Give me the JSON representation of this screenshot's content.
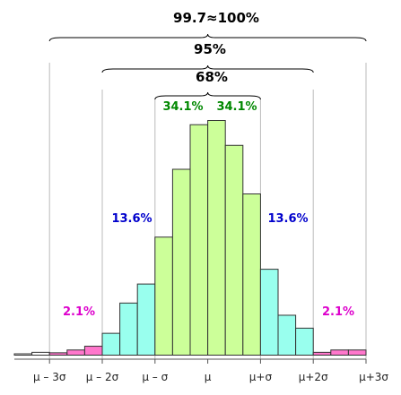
{
  "chart_data": {
    "type": "bar",
    "subtype": "histogram",
    "x_ticks": [
      "μ – 3σ",
      "μ – 2σ",
      "μ – σ",
      "μ",
      "μ+σ",
      "μ+2σ",
      "μ+3σ"
    ],
    "bins": [
      {
        "value": 0.004,
        "band": "outer"
      },
      {
        "value": 0.012,
        "band": "outer"
      },
      {
        "value": 0.01,
        "band": "tail"
      },
      {
        "value": 0.022,
        "band": "tail"
      },
      {
        "value": 0.038,
        "band": "tail"
      },
      {
        "value": 0.093,
        "band": "two_sigma"
      },
      {
        "value": 0.222,
        "band": "two_sigma"
      },
      {
        "value": 0.303,
        "band": "two_sigma"
      },
      {
        "value": 0.503,
        "band": "one_sigma"
      },
      {
        "value": 0.792,
        "band": "one_sigma"
      },
      {
        "value": 0.982,
        "band": "one_sigma"
      },
      {
        "value": 1.0,
        "band": "one_sigma"
      },
      {
        "value": 0.894,
        "band": "one_sigma"
      },
      {
        "value": 0.687,
        "band": "one_sigma"
      },
      {
        "value": 0.366,
        "band": "two_sigma"
      },
      {
        "value": 0.17,
        "band": "two_sigma"
      },
      {
        "value": 0.115,
        "band": "two_sigma"
      },
      {
        "value": 0.012,
        "band": "tail"
      },
      {
        "value": 0.022,
        "band": "tail"
      },
      {
        "value": 0.022,
        "band": "tail"
      }
    ],
    "band_colors": {
      "one_sigma": "#ccff99",
      "two_sigma": "#99ffee",
      "tail": "#ff77cc",
      "outer": "#ffffff"
    },
    "brace_labels": {
      "three_sigma": "99.7≈100%",
      "two_sigma": "95%",
      "one_sigma": "68%"
    },
    "region_labels": {
      "left_center": "34.1%",
      "right_center": "34.1%",
      "left_mid": "13.6%",
      "right_mid": "13.6%",
      "left_tail": "2.1%",
      "right_tail": "2.1%"
    },
    "label_colors": {
      "center": "#008800",
      "mid": "#0000cc",
      "tail": "#dd00cc"
    },
    "grid": false,
    "legend": "none"
  }
}
